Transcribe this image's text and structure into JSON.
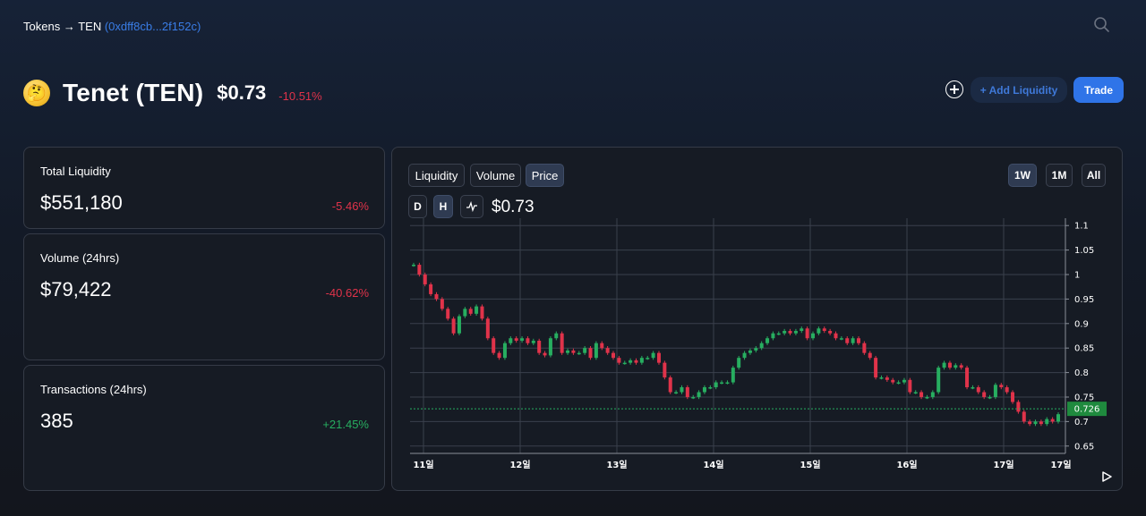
{
  "breadcrumb": {
    "root": "Tokens",
    "arrow": "→",
    "token": "TEN",
    "address": "(0xdff8cb...2f152c)"
  },
  "header": {
    "emoji": "🤔",
    "name": "Tenet (TEN)",
    "price": "$0.73",
    "change": "-10.51%"
  },
  "actions": {
    "add_liquidity": "+ Add Liquidity",
    "trade": "Trade"
  },
  "stats": [
    {
      "label": "Total Liquidity",
      "value": "$551,180",
      "change": "-5.46%"
    },
    {
      "label": "Volume (24hrs)",
      "value": "$79,422",
      "change": "-40.62%"
    },
    {
      "label": "Transactions (24hrs)",
      "value": "385",
      "change": "+21.45%"
    }
  ],
  "chart_tabs": [
    "Liquidity",
    "Volume",
    "Price"
  ],
  "active_tab": "Price",
  "intervals": [
    "D",
    "H"
  ],
  "active_interval": "H",
  "ranges": [
    "1W",
    "1M",
    "All"
  ],
  "active_range": "1W",
  "chart_price": "$0.73",
  "colors": {
    "up": "#27ae60",
    "down": "#e0334a",
    "accent": "#2f74e8"
  },
  "chart_data": {
    "type": "candlestick",
    "x_ticks": [
      "11일",
      "12일",
      "13일",
      "14일",
      "15일",
      "16일",
      "17일",
      "17일"
    ],
    "y_ticks": [
      0.65,
      0.7,
      0.75,
      0.8,
      0.85,
      0.9,
      0.95,
      1,
      1.05,
      1.1
    ],
    "ylim": [
      0.635,
      1.115
    ],
    "current_value": "0.726",
    "close": [
      1.02,
      1.0,
      0.98,
      0.96,
      0.95,
      0.93,
      0.91,
      0.88,
      0.915,
      0.93,
      0.92,
      0.935,
      0.91,
      0.87,
      0.84,
      0.83,
      0.86,
      0.87,
      0.865,
      0.87,
      0.86,
      0.865,
      0.84,
      0.835,
      0.87,
      0.88,
      0.84,
      0.845,
      0.84,
      0.84,
      0.85,
      0.83,
      0.86,
      0.85,
      0.84,
      0.83,
      0.82,
      0.82,
      0.825,
      0.82,
      0.83,
      0.83,
      0.84,
      0.82,
      0.79,
      0.76,
      0.76,
      0.77,
      0.75,
      0.75,
      0.76,
      0.77,
      0.77,
      0.78,
      0.78,
      0.78,
      0.81,
      0.83,
      0.84,
      0.845,
      0.85,
      0.86,
      0.87,
      0.88,
      0.88,
      0.885,
      0.88,
      0.885,
      0.89,
      0.87,
      0.88,
      0.89,
      0.885,
      0.88,
      0.87,
      0.87,
      0.86,
      0.87,
      0.86,
      0.84,
      0.83,
      0.79,
      0.79,
      0.785,
      0.78,
      0.78,
      0.785,
      0.76,
      0.76,
      0.75,
      0.75,
      0.76,
      0.81,
      0.82,
      0.81,
      0.815,
      0.81,
      0.77,
      0.77,
      0.76,
      0.75,
      0.75,
      0.775,
      0.77,
      0.76,
      0.74,
      0.72,
      0.7,
      0.695,
      0.7,
      0.695,
      0.705,
      0.7,
      0.715
    ]
  }
}
